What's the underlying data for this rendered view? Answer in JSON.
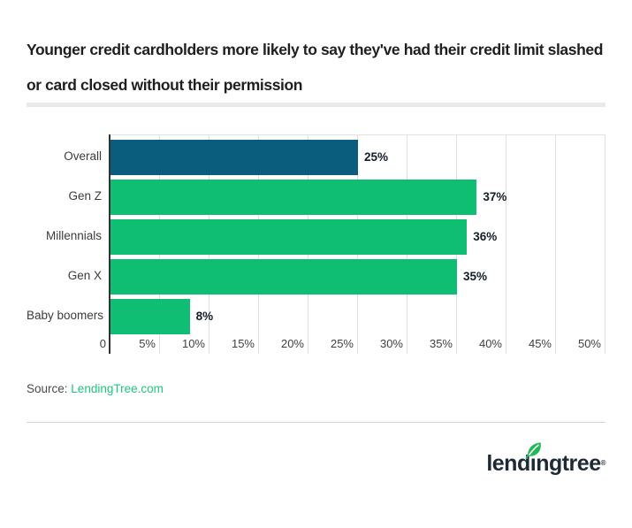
{
  "title": "Younger credit cardholders more likely to say they've had their credit limit slashed or card closed without their permission",
  "source": {
    "label": "Source:",
    "link_text": "LendingTree.com"
  },
  "logo": {
    "text_pre": "lend",
    "text_i": "ı",
    "text_post": "ngtree",
    "registered": "®"
  },
  "colors": {
    "overall_bar": "#0b5d7d",
    "generation_bar": "#0fbe73",
    "link_green": "#1fc77d",
    "logo_navy": "#1d2935",
    "leaf_green": "#21b857",
    "gridline": "#e0e0e0"
  },
  "chart_data": {
    "type": "bar",
    "orientation": "horizontal",
    "title": "Younger credit cardholders more likely to say they've had their credit limit slashed or card closed without their permission",
    "categories": [
      "Overall",
      "Gen Z",
      "Millennials",
      "Gen X",
      "Baby boomers"
    ],
    "values": [
      25,
      37,
      36,
      35,
      8
    ],
    "value_labels": [
      "25%",
      "37%",
      "36%",
      "35%",
      "8%"
    ],
    "bar_colors": [
      "#0b5d7d",
      "#0fbe73",
      "#0fbe73",
      "#0fbe73",
      "#0fbe73"
    ],
    "xlim": [
      0,
      50
    ],
    "x_ticks": [
      "0",
      "5%",
      "10%",
      "15%",
      "20%",
      "25%",
      "30%",
      "35%",
      "40%",
      "45%",
      "50%"
    ],
    "grid": true,
    "legend": "none"
  }
}
